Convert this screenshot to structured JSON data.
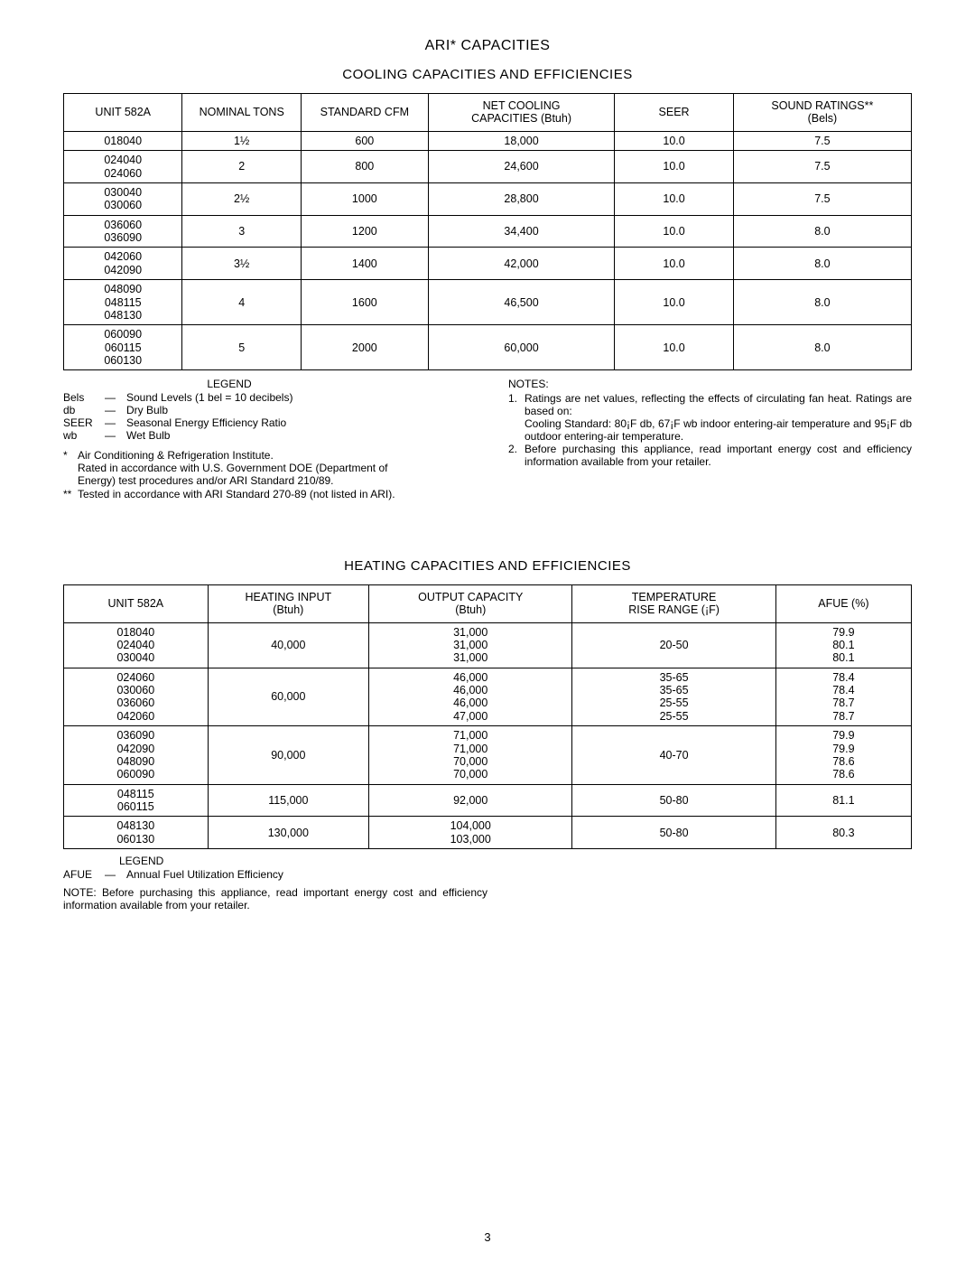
{
  "titles": {
    "main": "ARI* CAPACITIES",
    "cool": "COOLING CAPACITIES AND EFFICIENCIES",
    "heat": "HEATING CAPACITIES AND EFFICIENCIES"
  },
  "coolTable": {
    "headers": [
      "UNIT 582A",
      "NOMINAL TONS",
      "STANDARD CFM",
      "NET COOLING\nCAPACITIES (Btuh)",
      "SEER",
      "SOUND RATINGS**\n(Bels)"
    ],
    "colWidths": [
      "14%",
      "14%",
      "15%",
      "22%",
      "14%",
      "21%"
    ],
    "rows": [
      {
        "unit": "018040",
        "tons": "1½",
        "cfm": "600",
        "net": "18,000",
        "seer": "10.0",
        "sound": "7.5"
      },
      {
        "unit": "024040\n024060",
        "tons": "2",
        "cfm": "800",
        "net": "24,600",
        "seer": "10.0",
        "sound": "7.5"
      },
      {
        "unit": "030040\n030060",
        "tons": "2½",
        "cfm": "1000",
        "net": "28,800",
        "seer": "10.0",
        "sound": "7.5"
      },
      {
        "unit": "036060\n036090",
        "tons": "3",
        "cfm": "1200",
        "net": "34,400",
        "seer": "10.0",
        "sound": "8.0"
      },
      {
        "unit": "042060\n042090",
        "tons": "3½",
        "cfm": "1400",
        "net": "42,000",
        "seer": "10.0",
        "sound": "8.0"
      },
      {
        "unit": "048090\n048115\n048130",
        "tons": "4",
        "cfm": "1600",
        "net": "46,500",
        "seer": "10.0",
        "sound": "8.0"
      },
      {
        "unit": "060090\n060115\n060130",
        "tons": "5",
        "cfm": "2000",
        "net": "60,000",
        "seer": "10.0",
        "sound": "8.0"
      }
    ]
  },
  "legendCool": {
    "title": "LEGEND",
    "items": [
      {
        "term": "Bels",
        "def": "Sound Levels (1 bel = 10 decibels)"
      },
      {
        "term": "db",
        "def": "Dry Bulb"
      },
      {
        "term": "SEER",
        "def": "Seasonal Energy Efficiency Ratio"
      },
      {
        "term": "wb",
        "def": "Wet Bulb"
      }
    ]
  },
  "footnotesCool": [
    {
      "mark": "*",
      "lines": [
        "Air Conditioning & Refrigeration Institute.",
        "Rated in accordance with U.S. Government DOE (Department of",
        "Energy) test procedures and/or ARI Standard 210/89."
      ]
    },
    {
      "mark": "**",
      "lines": [
        "Tested in accordance with ARI Standard 270-89 (not listed in ARI)."
      ]
    }
  ],
  "notesCool": {
    "title": "NOTES:",
    "items": [
      {
        "num": "1.",
        "text": "Ratings are net values, reflecting the effects of circulating fan heat. Ratings are based on:",
        "sub": "Cooling Standard:   80¡F db, 67¡F wb indoor entering-air temperature and 95¡F db outdoor entering-air temperature."
      },
      {
        "num": "2.",
        "text": "Before purchasing this appliance, read important energy cost and efficiency information available from your retailer."
      }
    ]
  },
  "heatTable": {
    "headers": [
      "UNIT 582A",
      "HEATING INPUT\n(Btuh)",
      "OUTPUT CAPACITY\n(Btuh)",
      "TEMPERATURE\nRISE RANGE (¡F)",
      "AFUE (%)"
    ],
    "colWidths": [
      "17%",
      "19%",
      "24%",
      "24%",
      "16%"
    ],
    "rows": [
      {
        "unit": "018040\n024040\n030040",
        "input": "40,000",
        "output": "31,000\n31,000\n31,000",
        "range": "20-50",
        "afue": "79.9\n80.1\n80.1"
      },
      {
        "unit": "024060\n030060\n036060\n042060",
        "input": "60,000",
        "output": "46,000\n46,000\n46,000\n47,000",
        "range": "35-65\n35-65\n25-55\n25-55",
        "afue": "78.4\n78.4\n78.7\n78.7"
      },
      {
        "unit": "036090\n042090\n048090\n060090",
        "input": "90,000",
        "output": "71,000\n71,000\n70,000\n70,000",
        "range": "40-70",
        "afue": "79.9\n79.9\n78.6\n78.6"
      },
      {
        "unit": "048115\n060115",
        "input": "115,000",
        "output": "92,000",
        "range": "50-80",
        "afue": "81.1"
      },
      {
        "unit": "048130\n060130",
        "input": "130,000",
        "output": "104,000\n103,000",
        "range": "50-80",
        "afue": "80.3"
      }
    ]
  },
  "legendHeat": {
    "title": "LEGEND",
    "item": {
      "term": "AFUE",
      "def": "Annual Fuel Utilization Efficiency"
    }
  },
  "noteHeat": "NOTE: Before purchasing this appliance, read important energy cost and efficiency information available from your retailer.",
  "pageNumber": "3"
}
